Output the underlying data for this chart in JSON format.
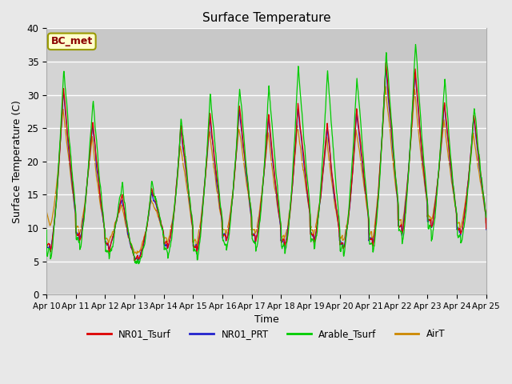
{
  "title": "Surface Temperature",
  "ylabel": "Surface Temperature (C)",
  "xlabel": "Time",
  "annotation": "BC_met",
  "ylim": [
    0,
    40
  ],
  "fig_bg": "#e8e8e8",
  "plot_bg": "#d4d4d4",
  "plot_bg_top": "#cccccc",
  "series_colors": {
    "NR01_Tsurf": "#dd0000",
    "NR01_PRT": "#2222cc",
    "Arable_Tsurf": "#00cc00",
    "AirT": "#cc8800"
  },
  "xtick_labels": [
    "Apr 10",
    "Apr 11",
    "Apr 12",
    "Apr 13",
    "Apr 14",
    "Apr 15",
    "Apr 16",
    "Apr 17",
    "Apr 18",
    "Apr 19",
    "Apr 20",
    "Apr 21",
    "Apr 22",
    "Apr 23",
    "Apr 24",
    "Apr 25"
  ],
  "ytick_labels": [
    "0",
    "5",
    "10",
    "15",
    "20",
    "25",
    "30",
    "35",
    "40"
  ],
  "yticks": [
    0,
    5,
    10,
    15,
    20,
    25,
    30,
    35,
    40
  ]
}
